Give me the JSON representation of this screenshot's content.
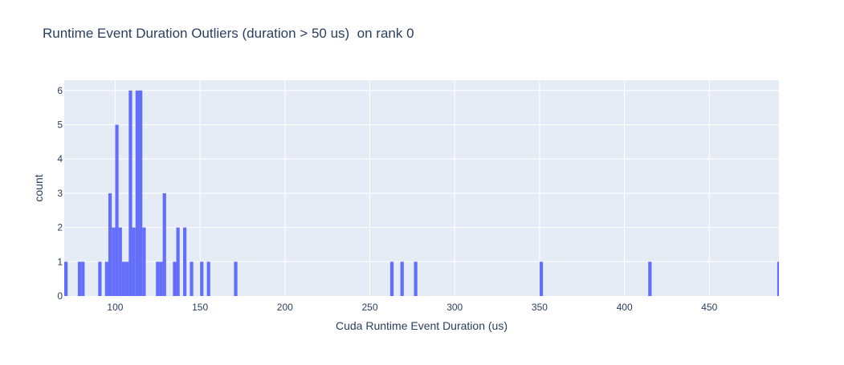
{
  "chart_data": {
    "type": "bar",
    "title": "Runtime Event Duration Outliers (duration > 50 us)  on rank 0",
    "xlabel": "Cuda Runtime Event Duration (us)",
    "ylabel": "count",
    "xlim": [
      70,
      491
    ],
    "ylim": [
      0,
      6.3
    ],
    "bin_width": 2,
    "x_ticks": [
      100,
      150,
      200,
      250,
      300,
      350,
      400,
      450
    ],
    "y_ticks": [
      0,
      1,
      2,
      3,
      4,
      5,
      6
    ],
    "grid": true,
    "colors": {
      "bar": "#636efa",
      "plot_bg": "#e5ecf6",
      "grid": "#ffffff",
      "text": "#2a3f5f"
    },
    "bins": [
      {
        "x": 70,
        "count": 1
      },
      {
        "x": 78,
        "count": 1
      },
      {
        "x": 80,
        "count": 1
      },
      {
        "x": 90,
        "count": 1
      },
      {
        "x": 94,
        "count": 1
      },
      {
        "x": 96,
        "count": 3
      },
      {
        "x": 98,
        "count": 2
      },
      {
        "x": 100,
        "count": 5
      },
      {
        "x": 102,
        "count": 2
      },
      {
        "x": 104,
        "count": 1
      },
      {
        "x": 106,
        "count": 1
      },
      {
        "x": 108,
        "count": 6
      },
      {
        "x": 110,
        "count": 2
      },
      {
        "x": 112,
        "count": 6
      },
      {
        "x": 114,
        "count": 6
      },
      {
        "x": 116,
        "count": 2
      },
      {
        "x": 124,
        "count": 1
      },
      {
        "x": 126,
        "count": 1
      },
      {
        "x": 128,
        "count": 3
      },
      {
        "x": 134,
        "count": 1
      },
      {
        "x": 136,
        "count": 2
      },
      {
        "x": 140,
        "count": 2
      },
      {
        "x": 144,
        "count": 1
      },
      {
        "x": 150,
        "count": 1
      },
      {
        "x": 154,
        "count": 1
      },
      {
        "x": 170,
        "count": 1
      },
      {
        "x": 262,
        "count": 1
      },
      {
        "x": 268,
        "count": 1
      },
      {
        "x": 276,
        "count": 1
      },
      {
        "x": 350,
        "count": 1
      },
      {
        "x": 414,
        "count": 1
      },
      {
        "x": 490,
        "count": 1
      }
    ]
  }
}
